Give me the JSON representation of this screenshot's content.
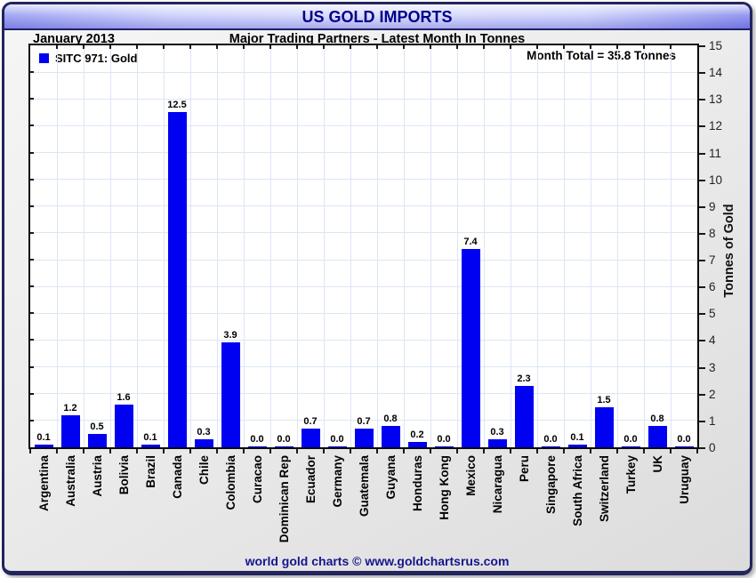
{
  "header": {
    "title": "US GOLD IMPORTS",
    "period": "January 2013",
    "subtitle": "Major Trading Partners - Latest Month In Tonnes"
  },
  "legend": {
    "label": "SITC 971: Gold",
    "marker_color": "#0101f2"
  },
  "annotation": {
    "text": "Month Total = 35.8 Tonnes"
  },
  "footer": {
    "credit": "world gold charts © www.goldchartsrus.com"
  },
  "colors": {
    "bar": "#0101f2",
    "grid": "#dbe6f4",
    "title_text": "#00008b",
    "footer_text": "#15158f",
    "frame_border": "#23255c"
  },
  "chart_data": {
    "type": "bar",
    "title": "US GOLD IMPORTS",
    "subtitle": "Major Trading Partners - Latest Month In Tonnes",
    "period": "January 2013",
    "series_name": "SITC 971: Gold",
    "categories": [
      "Argentina",
      "Australia",
      "Austria",
      "Bolivia",
      "Brazil",
      "Canada",
      "Chile",
      "Colombia",
      "Curacao",
      "Dominican Rep",
      "Ecuador",
      "Germany",
      "Guatemala",
      "Guyana",
      "Honduras",
      "Hong Kong",
      "Mexico",
      "Nicaragua",
      "Peru",
      "Singapore",
      "South Africa",
      "Switzerland",
      "Turkey",
      "UK",
      "Uruguay"
    ],
    "values": [
      0.1,
      1.2,
      0.5,
      1.6,
      0.1,
      12.5,
      0.3,
      3.9,
      0.0,
      0.0,
      0.7,
      0.0,
      0.7,
      0.8,
      0.2,
      0.0,
      7.4,
      0.3,
      2.3,
      0.0,
      0.1,
      1.5,
      0.0,
      0.8,
      0.0
    ],
    "value_labels": [
      "0.1",
      "1.2",
      "0.5",
      "1.6",
      "0.1",
      "12.5",
      "0.3",
      "3.9",
      "0.0",
      "0.0",
      "0.7",
      "0.0",
      "0.7",
      "0.8",
      "0.2",
      "0.0",
      "7.4",
      "0.3",
      "2.3",
      "0.0",
      "0.1",
      "1.5",
      "0.0",
      "0.8",
      "0.0"
    ],
    "xlabel": "",
    "ylabel": "Tonnes of Gold",
    "ylim": [
      0,
      15
    ],
    "ytick_step": 1,
    "ytick_labels": [
      "0",
      "1",
      "2",
      "3",
      "4",
      "5",
      "6",
      "7",
      "8",
      "9",
      "10",
      "11",
      "12",
      "13",
      "14",
      "15"
    ],
    "yaxis_side": "right",
    "grid": true,
    "legend_position": "top-left",
    "annotation": "Month Total = 35.8 Tonnes",
    "month_total": 35.8
  }
}
